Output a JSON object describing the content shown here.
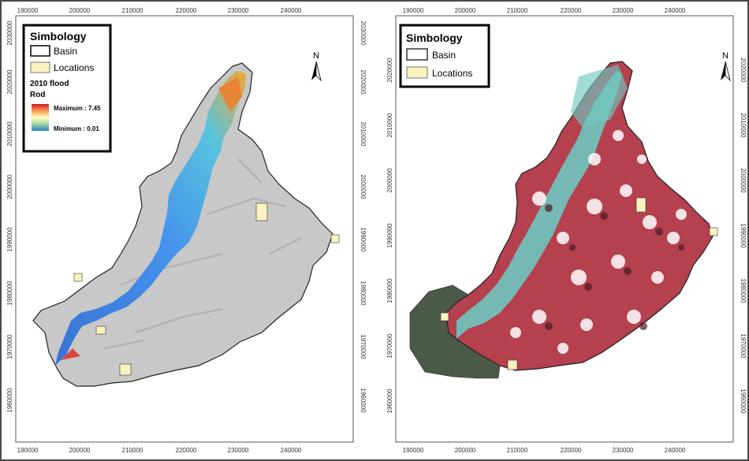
{
  "left_map": {
    "legend": {
      "title": "Simbology",
      "basin_label": "Basin",
      "locations_label": "Locations",
      "flood_title": "2010 flood",
      "flood_layer": "Rod",
      "max_label": "Maximum : 7.45",
      "min_label": "Minimum : 0.01"
    },
    "north_label": "N",
    "x_ticks": [
      "190000",
      "200000",
      "210000",
      "220000",
      "230000",
      "240000"
    ],
    "y_ticks": [
      "2030000",
      "2020000",
      "2010000",
      "2000000",
      "1990000",
      "1980000",
      "1970000",
      "1960000"
    ]
  },
  "right_map": {
    "legend": {
      "title": "Simbology",
      "basin_label": "Basin",
      "locations_label": "Locations"
    },
    "north_label": "N",
    "x_ticks": [
      "190000",
      "200000",
      "210000",
      "220000",
      "230000",
      "240000"
    ],
    "y_ticks": [
      "2020000",
      "2010000",
      "2000000",
      "1990000",
      "1980000",
      "1970000",
      "1960000"
    ]
  },
  "colors": {
    "basin_fill_left": "#c8c8c8",
    "flood_high": "#d7191c",
    "flood_low": "#2b83ba",
    "locations": "#fbf3bf",
    "basin_fill_right": "#b5404e",
    "water_right": "#6fc7c0"
  }
}
